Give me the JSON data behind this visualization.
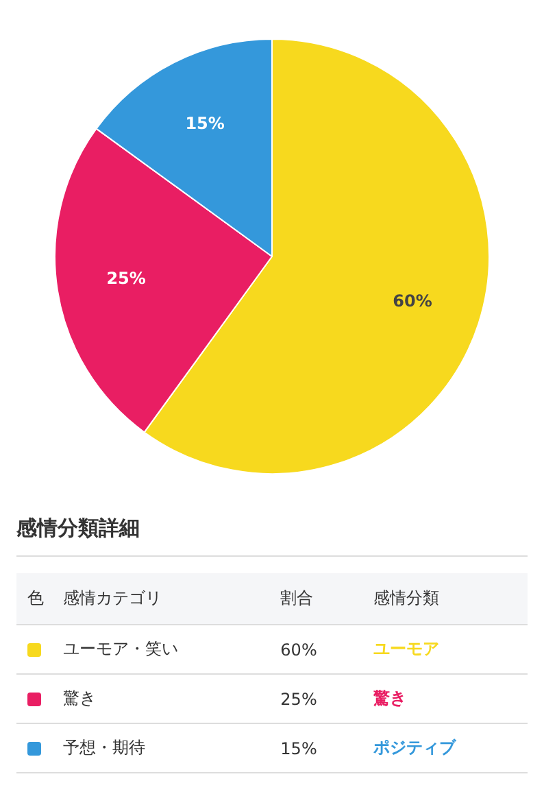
{
  "chart_data": {
    "type": "pie",
    "categories": [
      "ユーモア・笑い",
      "驚き",
      "予想・期待"
    ],
    "values": [
      60,
      25,
      15
    ],
    "colors": [
      "#f7d91e",
      "#e91e63",
      "#3498db"
    ],
    "value_labels": [
      "60%",
      "25%",
      "15%"
    ],
    "legend": "bottom",
    "annotations": [
      "感情分類詳細",
      "色",
      "感情カテゴリ",
      "割合",
      "感情分類",
      "ユーモア",
      "驚き",
      "ポジティブ"
    ]
  }
}
